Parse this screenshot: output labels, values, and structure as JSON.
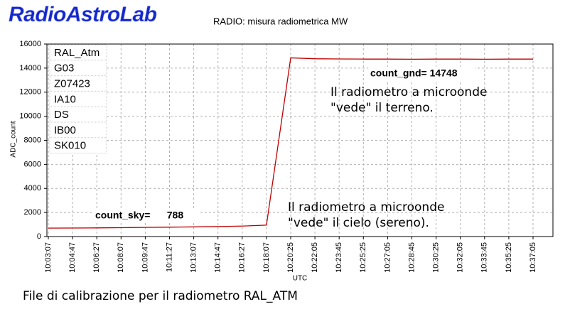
{
  "chart_data": {
    "type": "line",
    "logo": "RadioAstroLab",
    "title": "RADIO:  misura radiometrica  MW",
    "y_label": "ADC_count",
    "x_label": "UTC",
    "categories": [
      "10:03:07",
      "10:04:47",
      "10:06:27",
      "10:08:07",
      "10:09:47",
      "10:11:27",
      "10:13:07",
      "10:14:47",
      "10:16:27",
      "10:18:07",
      "10:20:25",
      "10:22:05",
      "10:23:45",
      "10:25:25",
      "10:27:05",
      "10:28:45",
      "10:30:25",
      "10:32:05",
      "10:33:45",
      "10:35:25",
      "10:37:05"
    ],
    "series": [
      {
        "name": "RAL_Atm",
        "color": "#c00000",
        "values": [
          700,
          710,
          720,
          740,
          760,
          780,
          800,
          830,
          870,
          950,
          14850,
          14780,
          14760,
          14750,
          14750,
          14740,
          14750,
          14750,
          14740,
          14750,
          14750
        ]
      }
    ],
    "ylim": [
      0,
      16000
    ],
    "yticks": [
      0,
      2000,
      4000,
      6000,
      8000,
      10000,
      12000,
      14000,
      16000
    ],
    "grid": true,
    "info_box": [
      "RAL_Atm",
      "G03",
      "Z07423",
      "IA10",
      "DS",
      "IB00",
      "SK010"
    ],
    "annotations": {
      "count_gnd": "count_gnd= 14748",
      "ground_note": [
        "Il radiometro a microonde",
        "\"vede\" il terreno."
      ],
      "count_sky": "count_sky=      788",
      "sky_note": [
        "Il radiometro a microonde",
        "\"vede\" il cielo (sereno)."
      ]
    },
    "caption": "File di calibrazione per il radiometro RAL_ATM"
  }
}
